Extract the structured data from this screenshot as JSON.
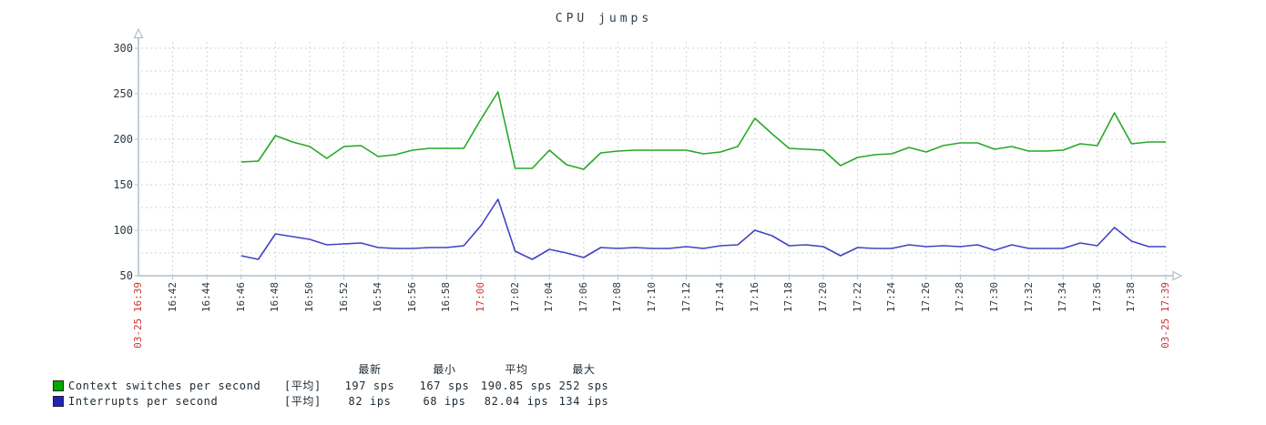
{
  "title": "CPU jumps",
  "palette": {
    "background": "#ffffff",
    "axis_color": "#aebfc9",
    "grid_color": "#ccd5da",
    "text_color": "#2c3840",
    "red_label_color": "#cc3333",
    "green_line": "#27a827",
    "blue_line": "#4343c3",
    "green_swatch": "#00aa00",
    "blue_swatch": "#2222bb"
  },
  "y_axis": {
    "labels": [
      "50",
      "100",
      "150",
      "200",
      "250",
      "300"
    ],
    "min": 50,
    "max": 300,
    "label_step": 50,
    "grid_step": 25
  },
  "x_axis": {
    "start_label": "03-25 16:39",
    "end_label": "03-25 17:39",
    "ticks": [
      {
        "label": "16:42",
        "red": false
      },
      {
        "label": "16:44",
        "red": false
      },
      {
        "label": "16:46",
        "red": false
      },
      {
        "label": "16:48",
        "red": false
      },
      {
        "label": "16:50",
        "red": false
      },
      {
        "label": "16:52",
        "red": false
      },
      {
        "label": "16:54",
        "red": false
      },
      {
        "label": "16:56",
        "red": false
      },
      {
        "label": "16:58",
        "red": false
      },
      {
        "label": "17:00",
        "red": true
      },
      {
        "label": "17:02",
        "red": false
      },
      {
        "label": "17:04",
        "red": false
      },
      {
        "label": "17:06",
        "red": false
      },
      {
        "label": "17:08",
        "red": false
      },
      {
        "label": "17:10",
        "red": false
      },
      {
        "label": "17:12",
        "red": false
      },
      {
        "label": "17:14",
        "red": false
      },
      {
        "label": "17:16",
        "red": false
      },
      {
        "label": "17:18",
        "red": false
      },
      {
        "label": "17:20",
        "red": false
      },
      {
        "label": "17:22",
        "red": false
      },
      {
        "label": "17:24",
        "red": false
      },
      {
        "label": "17:26",
        "red": false
      },
      {
        "label": "17:28",
        "red": false
      },
      {
        "label": "17:30",
        "red": false
      },
      {
        "label": "17:32",
        "red": false
      },
      {
        "label": "17:34",
        "red": false
      },
      {
        "label": "17:36",
        "red": false
      },
      {
        "label": "17:38",
        "red": false
      }
    ]
  },
  "chart_data": {
    "type": "line",
    "title": "CPU jumps",
    "xlabel": "time (03-25 16:39 to 03-25 17:39)",
    "ylabel": "",
    "ylim": [
      50,
      300
    ],
    "y_ticks": [
      50,
      100,
      150,
      200,
      250,
      300
    ],
    "grid": true,
    "legend_position": "bottom-left",
    "x": [
      "16:46",
      "16:47",
      "16:48",
      "16:49",
      "16:50",
      "16:51",
      "16:52",
      "16:53",
      "16:54",
      "16:55",
      "16:56",
      "16:57",
      "16:58",
      "16:59",
      "17:00",
      "17:01",
      "17:02",
      "17:03",
      "17:04",
      "17:05",
      "17:06",
      "17:07",
      "17:08",
      "17:09",
      "17:10",
      "17:11",
      "17:12",
      "17:13",
      "17:14",
      "17:15",
      "17:16",
      "17:17",
      "17:18",
      "17:19",
      "17:20",
      "17:21",
      "17:22",
      "17:23",
      "17:24",
      "17:25",
      "17:26",
      "17:27",
      "17:28",
      "17:29",
      "17:30",
      "17:31",
      "17:32",
      "17:33",
      "17:34",
      "17:35",
      "17:36",
      "17:37",
      "17:38",
      "17:39",
      "17:40"
    ],
    "series": [
      {
        "name": "Context switches per second",
        "unit": "sps",
        "color": "#27a827",
        "stats": {
          "latest": 197,
          "min": 167,
          "avg": 190.85,
          "max": 252
        },
        "values": [
          175,
          176,
          204,
          197,
          192,
          179,
          192,
          193,
          181,
          183,
          188,
          190,
          190,
          190,
          222,
          252,
          168,
          168,
          188,
          172,
          167,
          185,
          187,
          188,
          188,
          188,
          188,
          184,
          186,
          192,
          223,
          206,
          190,
          189,
          188,
          171,
          180,
          183,
          184,
          191,
          186,
          193,
          196,
          196,
          189,
          192,
          187,
          187,
          188,
          195,
          193,
          229,
          195,
          197,
          197
        ]
      },
      {
        "name": "Interrupts per second",
        "unit": "ips",
        "color": "#4343c3",
        "stats": {
          "latest": 82,
          "min": 68,
          "avg": 82.04,
          "max": 134
        },
        "values": [
          72,
          68,
          96,
          93,
          90,
          84,
          85,
          86,
          81,
          80,
          80,
          81,
          81,
          83,
          105,
          134,
          77,
          68,
          79,
          75,
          70,
          81,
          80,
          81,
          80,
          80,
          82,
          80,
          83,
          84,
          100,
          94,
          83,
          84,
          82,
          72,
          81,
          80,
          80,
          84,
          82,
          83,
          82,
          84,
          78,
          84,
          80,
          80,
          80,
          86,
          83,
          103,
          88,
          82,
          82
        ]
      }
    ]
  },
  "legend": {
    "headers": [
      "最新",
      "最小",
      "平均",
      "最大"
    ],
    "rows": [
      {
        "swatch_color": "#00aa00",
        "label": "Context switches per second",
        "function": "[平均]",
        "latest": "197 sps",
        "min": "167 sps",
        "avg": "190.85 sps",
        "max": "252 sps"
      },
      {
        "swatch_color": "#2222bb",
        "label": "Interrupts per second",
        "function": "[平均]",
        "latest": "82 ips",
        "min": "68 ips",
        "avg": "82.04 ips",
        "max": "134 ips"
      }
    ]
  }
}
